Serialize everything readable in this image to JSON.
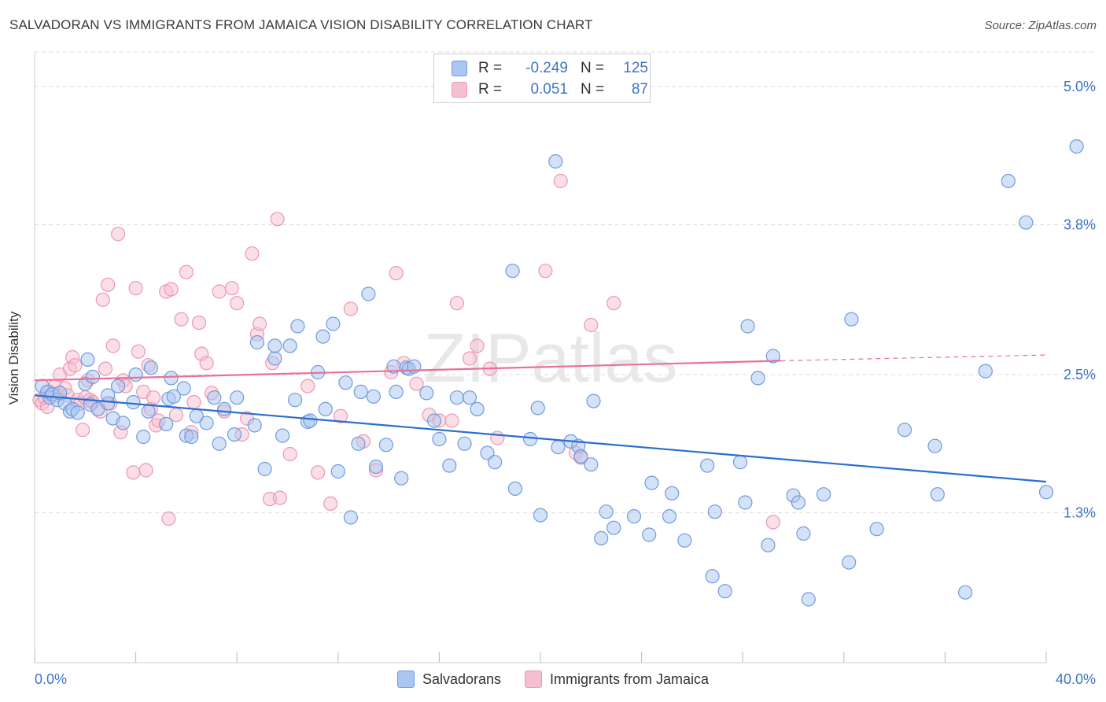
{
  "title": "SALVADORAN VS IMMIGRANTS FROM JAMAICA VISION DISABILITY CORRELATION CHART",
  "source": "Source: ZipAtlas.com",
  "watermark": "ZIPatlas",
  "legend": {
    "rows": [
      {
        "r_label": "R =",
        "r_value": "-0.249",
        "n_label": "N =",
        "n_value": "125"
      },
      {
        "r_label": "R =",
        "r_value": "0.051",
        "n_label": "N =",
        "n_value": "87"
      }
    ]
  },
  "colors": {
    "blue_fill": "#a9c6f0",
    "blue_stroke": "#6f9be0",
    "blue_line": "#2a6fcf",
    "pink_fill": "#f6bfd0",
    "pink_stroke": "#ec97b3",
    "pink_line": "#e8709a",
    "axis_text": "#3d74c9",
    "grid": "#dcdcdc"
  },
  "chart_data": {
    "type": "scatter",
    "title": "SALVADORAN VS IMMIGRANTS FROM JAMAICA VISION DISABILITY CORRELATION CHART",
    "xlabel": "",
    "ylabel": "Vision Disability",
    "xlim": [
      0,
      40
    ],
    "ylim": [
      0.0,
      5.3
    ],
    "x_tick_labels": [
      "0.0%",
      "40.0%"
    ],
    "y_ticks": [
      1.3,
      2.5,
      3.8,
      5.0
    ],
    "y_tick_labels": [
      "1.3%",
      "2.5%",
      "3.8%",
      "5.0%"
    ],
    "grid": true,
    "legend_position": "top-center",
    "series": [
      {
        "name": "Salvadorans",
        "color": "blue",
        "trend": {
          "x0": 0.0,
          "y0": 2.32,
          "x1": 40.0,
          "y1": 1.57
        },
        "points": [
          [
            0.3,
            2.4
          ],
          [
            0.5,
            2.35
          ],
          [
            0.6,
            2.3
          ],
          [
            0.7,
            2.33
          ],
          [
            0.9,
            2.28
          ],
          [
            1.0,
            2.34
          ],
          [
            1.2,
            2.25
          ],
          [
            1.4,
            2.18
          ],
          [
            1.5,
            2.2
          ],
          [
            1.7,
            2.17
          ],
          [
            2.0,
            2.42
          ],
          [
            2.1,
            2.63
          ],
          [
            2.2,
            2.24
          ],
          [
            2.3,
            2.48
          ],
          [
            2.5,
            2.2
          ],
          [
            2.9,
            2.25
          ],
          [
            2.9,
            2.32
          ],
          [
            3.1,
            2.12
          ],
          [
            3.3,
            2.4
          ],
          [
            3.5,
            2.08
          ],
          [
            3.9,
            2.26
          ],
          [
            4.0,
            2.5
          ],
          [
            4.3,
            1.96
          ],
          [
            4.5,
            2.18
          ],
          [
            4.6,
            2.56
          ],
          [
            5.2,
            2.07
          ],
          [
            5.3,
            2.29
          ],
          [
            5.4,
            2.47
          ],
          [
            5.5,
            2.31
          ],
          [
            5.9,
            2.38
          ],
          [
            6.0,
            1.97
          ],
          [
            6.2,
            1.96
          ],
          [
            6.4,
            2.14
          ],
          [
            6.8,
            2.08
          ],
          [
            7.1,
            2.3
          ],
          [
            7.3,
            1.9
          ],
          [
            7.5,
            2.2
          ],
          [
            7.9,
            1.98
          ],
          [
            8.0,
            2.3
          ],
          [
            8.7,
            2.06
          ],
          [
            8.8,
            2.78
          ],
          [
            9.1,
            1.68
          ],
          [
            9.5,
            2.64
          ],
          [
            9.5,
            2.75
          ],
          [
            9.8,
            1.97
          ],
          [
            10.1,
            2.75
          ],
          [
            10.3,
            2.28
          ],
          [
            10.4,
            2.92
          ],
          [
            10.8,
            2.09
          ],
          [
            10.9,
            2.1
          ],
          [
            11.2,
            2.52
          ],
          [
            11.4,
            2.83
          ],
          [
            11.5,
            2.2
          ],
          [
            11.8,
            2.94
          ],
          [
            12.0,
            1.66
          ],
          [
            12.3,
            2.43
          ],
          [
            12.5,
            1.26
          ],
          [
            12.8,
            1.9
          ],
          [
            12.9,
            2.35
          ],
          [
            13.2,
            3.2
          ],
          [
            13.4,
            2.31
          ],
          [
            13.5,
            1.7
          ],
          [
            13.9,
            1.89
          ],
          [
            14.2,
            2.57
          ],
          [
            14.3,
            2.35
          ],
          [
            14.5,
            1.6
          ],
          [
            14.7,
            2.56
          ],
          [
            14.8,
            2.55
          ],
          [
            15.0,
            2.57
          ],
          [
            15.5,
            2.34
          ],
          [
            15.8,
            2.1
          ],
          [
            16.0,
            1.94
          ],
          [
            16.4,
            1.71
          ],
          [
            16.7,
            2.3
          ],
          [
            17.0,
            1.9
          ],
          [
            17.2,
            2.3
          ],
          [
            17.5,
            2.2
          ],
          [
            17.9,
            1.82
          ],
          [
            18.2,
            1.74
          ],
          [
            18.9,
            3.4
          ],
          [
            19.0,
            1.51
          ],
          [
            19.6,
            1.94
          ],
          [
            19.9,
            2.21
          ],
          [
            20.0,
            1.28
          ],
          [
            20.6,
            4.35
          ],
          [
            20.7,
            1.87
          ],
          [
            21.2,
            1.92
          ],
          [
            21.5,
            1.88
          ],
          [
            21.6,
            1.79
          ],
          [
            22.0,
            1.72
          ],
          [
            22.1,
            2.27
          ],
          [
            22.4,
            1.08
          ],
          [
            22.6,
            1.31
          ],
          [
            22.9,
            1.17
          ],
          [
            23.7,
            1.27
          ],
          [
            24.3,
            1.11
          ],
          [
            24.4,
            1.56
          ],
          [
            25.1,
            1.27
          ],
          [
            25.2,
            1.47
          ],
          [
            25.7,
            1.06
          ],
          [
            26.6,
            1.71
          ],
          [
            26.8,
            0.75
          ],
          [
            26.9,
            1.31
          ],
          [
            27.3,
            0.62
          ],
          [
            27.9,
            1.74
          ],
          [
            28.1,
            1.39
          ],
          [
            28.6,
            2.47
          ],
          [
            29.0,
            1.02
          ],
          [
            29.2,
            2.66
          ],
          [
            28.2,
            2.92
          ],
          [
            30.0,
            1.45
          ],
          [
            30.2,
            1.39
          ],
          [
            30.4,
            1.12
          ],
          [
            30.6,
            0.55
          ],
          [
            31.2,
            1.46
          ],
          [
            32.3,
            2.98
          ],
          [
            32.2,
            0.87
          ],
          [
            33.3,
            1.16
          ],
          [
            34.4,
            2.02
          ],
          [
            35.6,
            1.88
          ],
          [
            35.7,
            1.46
          ],
          [
            36.8,
            0.61
          ],
          [
            37.6,
            2.53
          ],
          [
            38.5,
            4.18
          ],
          [
            39.2,
            3.82
          ],
          [
            40.0,
            1.48
          ],
          [
            41.2,
            4.48
          ]
        ]
      },
      {
        "name": "Immigrants from Jamaica",
        "color": "pink",
        "trend": {
          "x0": 0.0,
          "y0": 2.45,
          "x1": 29.5,
          "y1": 2.62,
          "dash_x1": 40.0,
          "dash_y1": 2.67
        },
        "points": [
          [
            0.2,
            2.28
          ],
          [
            0.3,
            2.25
          ],
          [
            0.4,
            2.3
          ],
          [
            0.5,
            2.22
          ],
          [
            0.6,
            2.35
          ],
          [
            0.8,
            2.4
          ],
          [
            0.9,
            2.32
          ],
          [
            1.0,
            2.5
          ],
          [
            1.2,
            2.38
          ],
          [
            1.3,
            2.32
          ],
          [
            1.4,
            2.55
          ],
          [
            1.5,
            2.65
          ],
          [
            1.6,
            2.58
          ],
          [
            1.7,
            2.28
          ],
          [
            1.8,
            2.25
          ],
          [
            1.9,
            2.02
          ],
          [
            2.0,
            2.3
          ],
          [
            2.1,
            2.45
          ],
          [
            2.2,
            2.28
          ],
          [
            2.3,
            2.26
          ],
          [
            2.6,
            2.18
          ],
          [
            2.7,
            3.15
          ],
          [
            2.8,
            2.55
          ],
          [
            2.9,
            3.28
          ],
          [
            3.0,
            2.25
          ],
          [
            3.1,
            2.75
          ],
          [
            3.3,
            3.72
          ],
          [
            3.4,
            2.0
          ],
          [
            3.5,
            2.45
          ],
          [
            3.6,
            2.4
          ],
          [
            3.9,
            1.65
          ],
          [
            4.0,
            3.25
          ],
          [
            4.1,
            2.7
          ],
          [
            4.3,
            2.35
          ],
          [
            4.4,
            1.67
          ],
          [
            4.5,
            2.58
          ],
          [
            4.6,
            2.2
          ],
          [
            4.7,
            2.3
          ],
          [
            4.8,
            2.06
          ],
          [
            4.9,
            2.1
          ],
          [
            5.2,
            3.22
          ],
          [
            5.3,
            1.25
          ],
          [
            5.4,
            3.24
          ],
          [
            5.6,
            2.15
          ],
          [
            5.8,
            2.98
          ],
          [
            6.0,
            3.39
          ],
          [
            6.2,
            2.0
          ],
          [
            6.3,
            2.26
          ],
          [
            6.5,
            2.95
          ],
          [
            6.6,
            2.68
          ],
          [
            6.8,
            2.6
          ],
          [
            7.0,
            2.34
          ],
          [
            7.3,
            3.22
          ],
          [
            7.5,
            2.18
          ],
          [
            7.8,
            3.25
          ],
          [
            8.0,
            3.12
          ],
          [
            8.2,
            1.98
          ],
          [
            8.4,
            2.12
          ],
          [
            8.6,
            3.55
          ],
          [
            8.8,
            2.85
          ],
          [
            8.9,
            2.94
          ],
          [
            9.3,
            1.42
          ],
          [
            9.4,
            2.6
          ],
          [
            9.6,
            3.85
          ],
          [
            9.7,
            1.43
          ],
          [
            10.1,
            1.81
          ],
          [
            10.8,
            2.4
          ],
          [
            11.2,
            1.65
          ],
          [
            11.7,
            1.38
          ],
          [
            12.1,
            2.14
          ],
          [
            12.5,
            3.07
          ],
          [
            13.0,
            1.92
          ],
          [
            13.5,
            1.67
          ],
          [
            14.1,
            2.52
          ],
          [
            14.3,
            3.38
          ],
          [
            14.6,
            2.6
          ],
          [
            15.1,
            2.42
          ],
          [
            15.6,
            2.15
          ],
          [
            16.0,
            2.1
          ],
          [
            16.5,
            2.1
          ],
          [
            16.7,
            3.12
          ],
          [
            17.2,
            2.64
          ],
          [
            17.5,
            2.75
          ],
          [
            18.0,
            2.55
          ],
          [
            18.3,
            1.95
          ],
          [
            20.2,
            3.4
          ],
          [
            20.8,
            4.18
          ],
          [
            21.4,
            1.82
          ],
          [
            21.6,
            1.78
          ],
          [
            22.0,
            2.93
          ],
          [
            22.9,
            3.12
          ],
          [
            29.2,
            1.22
          ]
        ]
      }
    ]
  },
  "bottom_legend": {
    "items": [
      {
        "label": "Salvadorans"
      },
      {
        "label": "Immigrants from Jamaica"
      }
    ]
  }
}
